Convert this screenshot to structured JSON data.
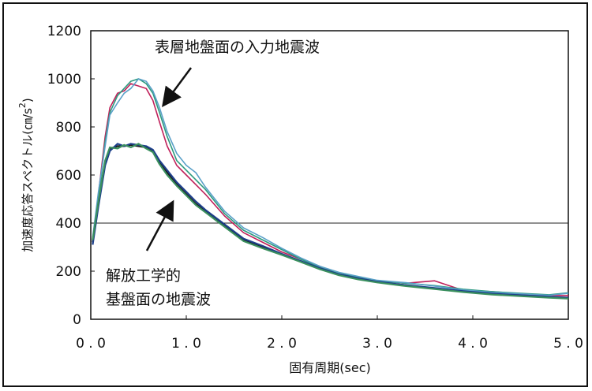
{
  "chart_data": {
    "type": "line",
    "title": "",
    "xlabel": "固有周期(sec)",
    "ylabel": "加速度応答スペクトル(㎝/s",
    "ylabel_superscript": "2",
    "ylabel_close": ")",
    "xlim": [
      0,
      5
    ],
    "ylim": [
      0,
      1200
    ],
    "x_ticks": [
      "0.0",
      "1.0",
      "2.0",
      "3.0",
      "4.0",
      "5.0"
    ],
    "y_ticks": [
      "0",
      "200",
      "400",
      "600",
      "800",
      "1000",
      "1200"
    ],
    "reference_line_y": 400,
    "grid": false,
    "annotations": {
      "upper": "表層地盤面の入力地震波",
      "lower_line1": "解放工学的",
      "lower_line2": "基盤面の地震波"
    },
    "series": [
      {
        "color": "#c0205a",
        "group": "surface",
        "x": [
          0.02,
          0.08,
          0.15,
          0.2,
          0.28,
          0.35,
          0.42,
          0.5,
          0.58,
          0.65,
          0.72,
          0.8,
          0.9,
          1.0,
          1.1,
          1.2,
          1.4,
          1.6,
          1.8,
          2.0,
          2.2,
          2.4,
          2.6,
          2.8,
          3.0,
          3.3,
          3.6,
          3.9,
          4.2,
          4.5,
          4.8,
          5.0
        ],
        "y": [
          330,
          520,
          760,
          880,
          940,
          950,
          980,
          970,
          960,
          910,
          820,
          720,
          640,
          600,
          560,
          520,
          430,
          360,
          320,
          280,
          250,
          220,
          185,
          170,
          160,
          150,
          160,
          120,
          115,
          105,
          100,
          98
        ]
      },
      {
        "color": "#2c9a7e",
        "group": "surface",
        "x": [
          0.02,
          0.08,
          0.15,
          0.2,
          0.28,
          0.35,
          0.42,
          0.5,
          0.58,
          0.65,
          0.72,
          0.8,
          0.9,
          1.0,
          1.1,
          1.2,
          1.4,
          1.6,
          1.8,
          2.0,
          2.2,
          2.4,
          2.6,
          2.8,
          3.0,
          3.3,
          3.6,
          3.9,
          4.2,
          4.5,
          4.8,
          5.0
        ],
        "y": [
          320,
          500,
          740,
          860,
          930,
          960,
          990,
          1000,
          980,
          940,
          860,
          760,
          660,
          620,
          580,
          540,
          440,
          370,
          330,
          290,
          250,
          215,
          190,
          175,
          160,
          150,
          140,
          125,
          115,
          108,
          102,
          110
        ]
      },
      {
        "color": "#5aa0c8",
        "group": "surface",
        "x": [
          0.02,
          0.08,
          0.15,
          0.2,
          0.28,
          0.35,
          0.42,
          0.5,
          0.58,
          0.65,
          0.72,
          0.8,
          0.9,
          1.0,
          1.1,
          1.2,
          1.4,
          1.6,
          1.8,
          2.0,
          2.2,
          2.4,
          2.6,
          2.8,
          3.0,
          3.3,
          3.6,
          3.9,
          4.2,
          4.5,
          4.8,
          5.0
        ],
        "y": [
          340,
          530,
          720,
          850,
          900,
          940,
          960,
          1000,
          990,
          950,
          880,
          780,
          690,
          640,
          610,
          550,
          450,
          380,
          340,
          295,
          255,
          220,
          195,
          178,
          162,
          152,
          138,
          122,
          112,
          106,
          100,
          108
        ]
      },
      {
        "color": "#1a1a1a",
        "group": "bedrock",
        "x": [
          0.02,
          0.08,
          0.15,
          0.2,
          0.28,
          0.35,
          0.42,
          0.5,
          0.58,
          0.65,
          0.72,
          0.8,
          0.9,
          1.0,
          1.1,
          1.2,
          1.4,
          1.6,
          1.8,
          2.0,
          2.2,
          2.4,
          2.6,
          2.8,
          3.0,
          3.3,
          3.6,
          3.9,
          4.2,
          4.5,
          4.8,
          5.0
        ],
        "y": [
          320,
          480,
          650,
          710,
          720,
          720,
          725,
          720,
          715,
          700,
          650,
          610,
          560,
          520,
          480,
          450,
          390,
          330,
          300,
          270,
          240,
          210,
          185,
          168,
          155,
          140,
          128,
          115,
          105,
          98,
          92,
          88
        ]
      },
      {
        "color": "#1d3f8a",
        "group": "bedrock",
        "x": [
          0.02,
          0.08,
          0.15,
          0.2,
          0.28,
          0.35,
          0.42,
          0.5,
          0.58,
          0.65,
          0.72,
          0.8,
          0.9,
          1.0,
          1.1,
          1.2,
          1.4,
          1.6,
          1.8,
          2.0,
          2.2,
          2.4,
          2.6,
          2.8,
          3.0,
          3.3,
          3.6,
          3.9,
          4.2,
          4.5,
          4.8,
          5.0
        ],
        "y": [
          310,
          470,
          640,
          700,
          730,
          720,
          730,
          725,
          720,
          705,
          660,
          620,
          570,
          530,
          490,
          455,
          395,
          335,
          305,
          272,
          242,
          212,
          187,
          170,
          156,
          142,
          130,
          117,
          107,
          100,
          94,
          90
        ]
      },
      {
        "color": "#3a8f5e",
        "group": "bedrock",
        "x": [
          0.02,
          0.08,
          0.15,
          0.2,
          0.28,
          0.35,
          0.42,
          0.5,
          0.58,
          0.65,
          0.72,
          0.8,
          0.9,
          1.0,
          1.1,
          1.2,
          1.4,
          1.6,
          1.8,
          2.0,
          2.2,
          2.4,
          2.6,
          2.8,
          3.0,
          3.3,
          3.6,
          3.9,
          4.2,
          4.5,
          4.8,
          5.0
        ],
        "y": [
          330,
          490,
          660,
          715,
          710,
          725,
          715,
          730,
          710,
          695,
          645,
          600,
          555,
          515,
          475,
          445,
          385,
          325,
          295,
          268,
          238,
          208,
          183,
          166,
          153,
          138,
          126,
          113,
          103,
          96,
          90,
          86
        ]
      }
    ]
  }
}
